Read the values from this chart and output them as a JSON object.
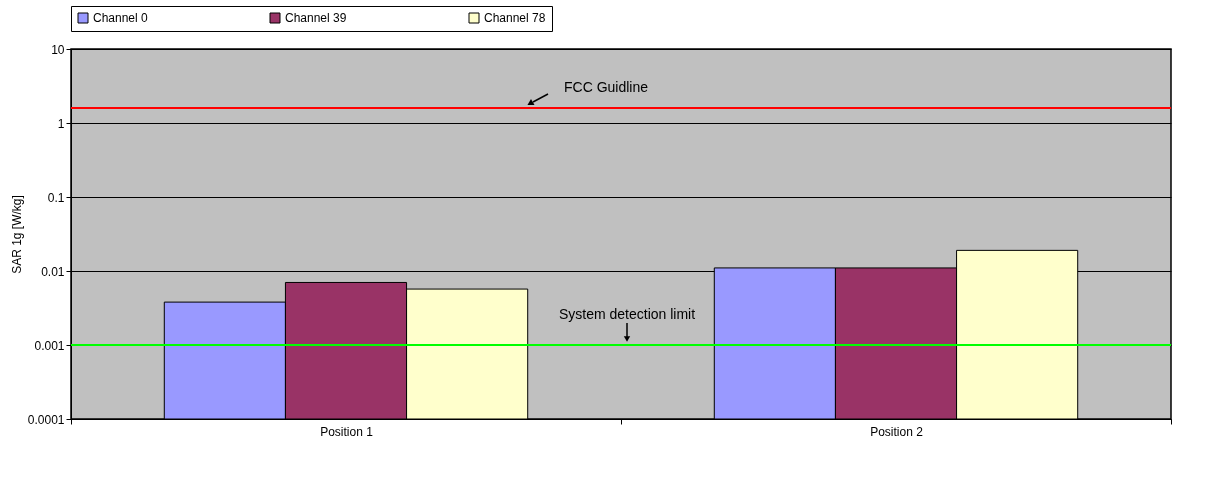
{
  "chart_data": {
    "type": "bar",
    "ylabel": "SAR 1g [W/kg]",
    "categories": [
      "Position 1",
      "Position 2"
    ],
    "series": [
      {
        "name": "Channel 0",
        "color": "#9999ff",
        "values": [
          0.0038,
          0.011
        ]
      },
      {
        "name": "Channel 39",
        "color": "#993366",
        "values": [
          0.007,
          0.011
        ]
      },
      {
        "name": "Channel 78",
        "color": "#ffffcc",
        "values": [
          0.0057,
          0.019
        ]
      }
    ],
    "log": "y",
    "ylim": [
      0.0001,
      10
    ],
    "yticks": [
      0.0001,
      0.001,
      0.01,
      0.1,
      1,
      10
    ],
    "grid": "y",
    "legend": "top",
    "ref_lines": [
      {
        "axis": "y",
        "value": 1.6,
        "label": "FCC Guidline",
        "color": "#ff0000"
      },
      {
        "axis": "y",
        "value": 0.001,
        "label": "System detection limit",
        "color": "#00ff00"
      }
    ]
  }
}
